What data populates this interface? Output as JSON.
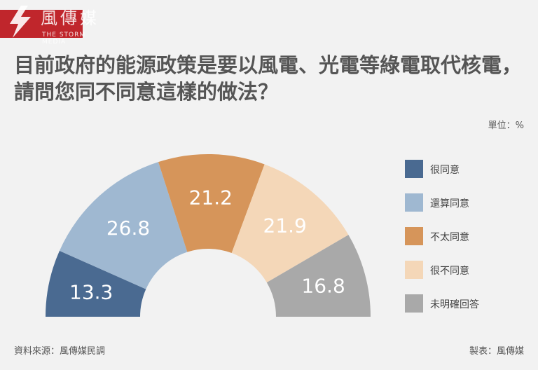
{
  "logo": {
    "name_cn": "風傳媒",
    "name_en": "THE STORM MEDIA"
  },
  "title": "目前政府的能源政策是要以風電、光電等綠電取代核電，請問您同不同意這樣的做法？",
  "unit_label": "單位：%",
  "source": "資料來源：風傳媒民調",
  "credit": "製表：風傳媒",
  "chart_data": {
    "type": "pie",
    "variant": "semi-donut",
    "title": "目前政府的能源政策是要以風電、光電等綠電取代核電，請問您同不同意這樣的做法？",
    "unit": "%",
    "categories": [
      "很同意",
      "還算同意",
      "不太同意",
      "很不同意",
      "未明確回答"
    ],
    "values": [
      13.3,
      26.8,
      21.2,
      21.9,
      16.8
    ],
    "colors": [
      "#4a6a91",
      "#9fb8d1",
      "#d6955a",
      "#f4d7b8",
      "#a9a9a9"
    ],
    "legend_position": "right"
  }
}
